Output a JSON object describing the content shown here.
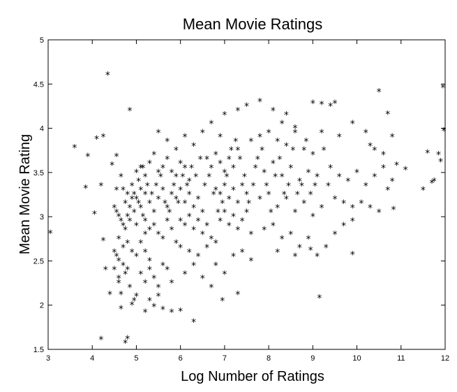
{
  "chart_data": {
    "type": "scatter",
    "title": "Mean Movie Ratings",
    "xlabel": "Log Number of Ratings",
    "ylabel": "Mean Movie Rating",
    "xlim": [
      3,
      12
    ],
    "ylim": [
      1.5,
      5
    ],
    "xticks": [
      "3",
      "4",
      "5",
      "6",
      "7",
      "8",
      "9",
      "10",
      "11",
      "12"
    ],
    "yticks": [
      "1.5",
      "2",
      "2.5",
      "3",
      "3.5",
      "4",
      "4.5",
      "5"
    ],
    "grid": false,
    "marker": "*",
    "marker_color": "#000000",
    "points": [
      [
        3.05,
        2.81
      ],
      [
        3.6,
        3.78
      ],
      [
        3.85,
        3.32
      ],
      [
        3.9,
        3.68
      ],
      [
        4.05,
        3.03
      ],
      [
        4.1,
        3.88
      ],
      [
        4.2,
        3.35
      ],
      [
        4.25,
        3.9
      ],
      [
        4.25,
        2.73
      ],
      [
        4.3,
        2.4
      ],
      [
        4.35,
        4.6
      ],
      [
        4.4,
        2.12
      ],
      [
        4.45,
        3.58
      ],
      [
        4.5,
        2.4
      ],
      [
        4.55,
        3.68
      ],
      [
        4.6,
        2.25
      ],
      [
        4.65,
        2.12
      ],
      [
        4.65,
        1.96
      ],
      [
        4.2,
        1.61
      ],
      [
        4.75,
        1.57
      ],
      [
        4.8,
        1.62
      ],
      [
        4.85,
        4.2
      ],
      [
        4.5,
        2.6
      ],
      [
        4.55,
        2.55
      ],
      [
        4.6,
        2.5
      ],
      [
        4.6,
        2.3
      ],
      [
        4.7,
        2.45
      ],
      [
        4.75,
        2.35
      ],
      [
        4.8,
        2.4
      ],
      [
        4.85,
        2.2
      ],
      [
        4.9,
        2.0
      ],
      [
        4.95,
        2.05
      ],
      [
        5.0,
        2.1
      ],
      [
        4.5,
        3.1
      ],
      [
        4.55,
        3.05
      ],
      [
        4.6,
        3.0
      ],
      [
        4.65,
        2.95
      ],
      [
        4.7,
        2.9
      ],
      [
        4.75,
        2.85
      ],
      [
        4.8,
        3.0
      ],
      [
        4.85,
        3.1
      ],
      [
        4.9,
        3.2
      ],
      [
        4.95,
        3.05
      ],
      [
        5.0,
        2.9
      ],
      [
        5.05,
        3.15
      ],
      [
        5.1,
        3.3
      ],
      [
        5.15,
        3.0
      ],
      [
        5.2,
        2.8
      ],
      [
        4.6,
        2.75
      ],
      [
        4.7,
        2.65
      ],
      [
        4.8,
        2.7
      ],
      [
        4.9,
        2.6
      ],
      [
        5.0,
        2.55
      ],
      [
        5.1,
        2.7
      ],
      [
        5.2,
        2.6
      ],
      [
        5.3,
        2.5
      ],
      [
        4.7,
        3.3
      ],
      [
        4.8,
        3.25
      ],
      [
        4.9,
        3.35
      ],
      [
        5.0,
        3.5
      ],
      [
        5.1,
        3.55
      ],
      [
        5.2,
        3.45
      ],
      [
        5.3,
        3.6
      ],
      [
        5.4,
        3.7
      ],
      [
        5.0,
        3.2
      ],
      [
        5.1,
        3.1
      ],
      [
        5.2,
        3.25
      ],
      [
        5.3,
        3.15
      ],
      [
        5.4,
        3.05
      ],
      [
        5.5,
        3.2
      ],
      [
        5.6,
        3.3
      ],
      [
        5.7,
        3.1
      ],
      [
        5.2,
        2.95
      ],
      [
        5.3,
        2.85
      ],
      [
        5.4,
        2.9
      ],
      [
        5.5,
        2.8
      ],
      [
        5.6,
        2.75
      ],
      [
        5.7,
        2.95
      ],
      [
        5.8,
        2.85
      ],
      [
        5.9,
        2.7
      ],
      [
        5.1,
        2.35
      ],
      [
        5.2,
        2.25
      ],
      [
        5.3,
        2.4
      ],
      [
        5.4,
        2.3
      ],
      [
        5.5,
        2.2
      ],
      [
        5.6,
        2.45
      ],
      [
        5.7,
        2.4
      ],
      [
        5.8,
        2.25
      ],
      [
        5.2,
        1.92
      ],
      [
        5.4,
        1.98
      ],
      [
        5.6,
        1.95
      ],
      [
        5.8,
        1.92
      ],
      [
        6.0,
        1.93
      ],
      [
        6.3,
        1.81
      ],
      [
        5.3,
        2.05
      ],
      [
        5.5,
        2.1
      ],
      [
        5.5,
        3.5
      ],
      [
        5.6,
        3.55
      ],
      [
        5.7,
        3.65
      ],
      [
        5.8,
        3.5
      ],
      [
        5.9,
        3.45
      ],
      [
        6.0,
        3.6
      ],
      [
        6.1,
        3.55
      ],
      [
        6.2,
        3.4
      ],
      [
        5.8,
        3.25
      ],
      [
        5.9,
        3.2
      ],
      [
        6.0,
        3.3
      ],
      [
        6.1,
        3.15
      ],
      [
        6.2,
        3.25
      ],
      [
        6.3,
        3.1
      ],
      [
        6.4,
        3.2
      ],
      [
        6.5,
        3.05
      ],
      [
        6.0,
        2.95
      ],
      [
        6.1,
        2.9
      ],
      [
        6.2,
        3.0
      ],
      [
        6.3,
        2.85
      ],
      [
        6.4,
        2.95
      ],
      [
        6.5,
        2.8
      ],
      [
        6.6,
        2.9
      ],
      [
        6.7,
        2.75
      ],
      [
        6.0,
        2.65
      ],
      [
        6.2,
        2.6
      ],
      [
        6.4,
        2.55
      ],
      [
        6.6,
        2.65
      ],
      [
        6.8,
        2.7
      ],
      [
        6.1,
        2.35
      ],
      [
        6.3,
        2.45
      ],
      [
        6.5,
        2.3
      ],
      [
        5.5,
        3.95
      ],
      [
        5.7,
        3.85
      ],
      [
        5.9,
        3.75
      ],
      [
        6.1,
        3.9
      ],
      [
        6.3,
        3.8
      ],
      [
        6.5,
        3.95
      ],
      [
        6.7,
        4.05
      ],
      [
        6.9,
        3.9
      ],
      [
        6.6,
        3.65
      ],
      [
        6.7,
        3.55
      ],
      [
        6.8,
        3.7
      ],
      [
        6.9,
        3.6
      ],
      [
        7.0,
        3.5
      ],
      [
        7.1,
        3.65
      ],
      [
        7.2,
        3.55
      ],
      [
        7.3,
        3.75
      ],
      [
        6.8,
        3.3
      ],
      [
        6.9,
        3.25
      ],
      [
        7.0,
        3.35
      ],
      [
        7.1,
        3.2
      ],
      [
        7.2,
        3.3
      ],
      [
        7.3,
        3.15
      ],
      [
        7.4,
        3.35
      ],
      [
        7.5,
        3.25
      ],
      [
        6.9,
        2.95
      ],
      [
        7.0,
        3.05
      ],
      [
        7.1,
        2.9
      ],
      [
        7.2,
        3.0
      ],
      [
        7.3,
        2.85
      ],
      [
        7.4,
        2.95
      ],
      [
        7.5,
        3.05
      ],
      [
        7.6,
        2.8
      ],
      [
        6.8,
        2.45
      ],
      [
        7.0,
        2.35
      ],
      [
        7.2,
        2.55
      ],
      [
        7.4,
        2.6
      ],
      [
        7.6,
        2.5
      ],
      [
        6.95,
        2.05
      ],
      [
        7.3,
        2.12
      ],
      [
        6.7,
        2.2
      ],
      [
        7.0,
        4.15
      ],
      [
        7.3,
        4.2
      ],
      [
        7.5,
        4.25
      ],
      [
        7.8,
        4.3
      ],
      [
        8.1,
        4.2
      ],
      [
        8.4,
        4.15
      ],
      [
        8.6,
        4.0
      ],
      [
        8.3,
        4.05
      ],
      [
        7.6,
        3.85
      ],
      [
        7.8,
        3.9
      ],
      [
        8.0,
        3.95
      ],
      [
        8.2,
        3.85
      ],
      [
        8.4,
        3.8
      ],
      [
        8.6,
        3.95
      ],
      [
        8.8,
        3.75
      ],
      [
        9.0,
        3.7
      ],
      [
        7.7,
        3.55
      ],
      [
        7.9,
        3.5
      ],
      [
        8.1,
        3.6
      ],
      [
        8.3,
        3.45
      ],
      [
        8.5,
        3.55
      ],
      [
        8.7,
        3.4
      ],
      [
        8.9,
        3.5
      ],
      [
        9.1,
        3.45
      ],
      [
        7.8,
        3.2
      ],
      [
        8.0,
        3.25
      ],
      [
        8.2,
        3.1
      ],
      [
        8.4,
        3.2
      ],
      [
        8.6,
        3.05
      ],
      [
        8.8,
        3.15
      ],
      [
        9.0,
        3.0
      ],
      [
        9.2,
        3.1
      ],
      [
        7.9,
        2.85
      ],
      [
        8.1,
        2.9
      ],
      [
        8.3,
        2.75
      ],
      [
        8.5,
        2.8
      ],
      [
        8.7,
        2.65
      ],
      [
        8.9,
        2.75
      ],
      [
        9.1,
        2.55
      ],
      [
        9.3,
        2.65
      ],
      [
        8.2,
        2.6
      ],
      [
        8.6,
        2.55
      ],
      [
        8.95,
        2.62
      ],
      [
        9.15,
        2.08
      ],
      [
        9.9,
        2.57
      ],
      [
        9.5,
        2.8
      ],
      [
        9.7,
        2.9
      ],
      [
        9.9,
        2.95
      ],
      [
        9.0,
        4.28
      ],
      [
        9.2,
        4.27
      ],
      [
        9.4,
        4.25
      ],
      [
        9.5,
        4.28
      ],
      [
        9.2,
        3.95
      ],
      [
        9.6,
        3.9
      ],
      [
        9.9,
        4.05
      ],
      [
        10.2,
        3.95
      ],
      [
        10.5,
        4.41
      ],
      [
        10.7,
        4.16
      ],
      [
        10.4,
        3.75
      ],
      [
        10.6,
        3.7
      ],
      [
        10.9,
        3.58
      ],
      [
        11.1,
        3.53
      ],
      [
        10.3,
        3.8
      ],
      [
        10.8,
        3.9
      ],
      [
        9.4,
        3.55
      ],
      [
        9.6,
        3.45
      ],
      [
        9.8,
        3.4
      ],
      [
        10.0,
        3.5
      ],
      [
        10.2,
        3.35
      ],
      [
        10.4,
        3.45
      ],
      [
        10.6,
        3.55
      ],
      [
        10.8,
        3.4
      ],
      [
        9.5,
        3.2
      ],
      [
        9.7,
        3.15
      ],
      [
        9.9,
        3.1
      ],
      [
        10.1,
        3.15
      ],
      [
        10.3,
        3.1
      ],
      [
        10.5,
        3.05
      ],
      [
        10.83,
        3.08
      ],
      [
        10.7,
        3.3
      ],
      [
        11.5,
        3.3
      ],
      [
        11.6,
        3.72
      ],
      [
        11.75,
        3.4
      ],
      [
        11.85,
        3.7
      ],
      [
        11.9,
        3.62
      ],
      [
        11.95,
        4.46
      ],
      [
        11.97,
        3.97
      ],
      [
        11.7,
        3.38
      ],
      [
        4.55,
        3.3
      ],
      [
        4.65,
        3.45
      ],
      [
        4.75,
        3.15
      ],
      [
        4.85,
        2.95
      ],
      [
        4.95,
        3.25
      ],
      [
        5.05,
        3.4
      ],
      [
        5.15,
        3.55
      ],
      [
        5.25,
        3.35
      ],
      [
        5.35,
        3.25
      ],
      [
        5.45,
        3.35
      ],
      [
        5.55,
        3.45
      ],
      [
        5.65,
        3.15
      ],
      [
        5.75,
        3.05
      ],
      [
        5.85,
        3.35
      ],
      [
        5.95,
        3.15
      ],
      [
        6.05,
        3.45
      ],
      [
        6.15,
        3.35
      ],
      [
        6.25,
        3.55
      ],
      [
        6.35,
        3.45
      ],
      [
        6.45,
        3.65
      ],
      [
        6.55,
        3.35
      ],
      [
        6.65,
        3.45
      ],
      [
        6.75,
        3.25
      ],
      [
        6.85,
        3.05
      ],
      [
        6.95,
        3.15
      ],
      [
        7.05,
        3.45
      ],
      [
        7.15,
        3.75
      ],
      [
        7.25,
        3.85
      ],
      [
        7.35,
        3.65
      ],
      [
        7.45,
        3.45
      ],
      [
        7.55,
        3.15
      ],
      [
        7.65,
        3.35
      ],
      [
        7.75,
        3.65
      ],
      [
        7.85,
        3.75
      ],
      [
        7.95,
        3.35
      ],
      [
        8.05,
        3.05
      ],
      [
        8.15,
        3.45
      ],
      [
        8.25,
        3.65
      ],
      [
        8.35,
        3.25
      ],
      [
        8.45,
        3.35
      ],
      [
        8.55,
        3.75
      ],
      [
        8.65,
        3.25
      ],
      [
        8.75,
        3.35
      ],
      [
        8.85,
        3.85
      ],
      [
        8.95,
        3.25
      ],
      [
        9.05,
        3.35
      ],
      [
        9.25,
        3.75
      ],
      [
        9.35,
        3.35
      ]
    ]
  }
}
